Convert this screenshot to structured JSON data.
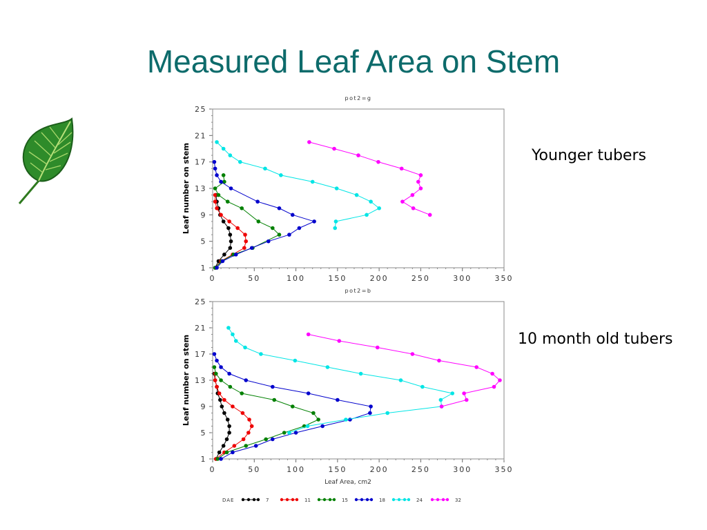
{
  "slide": {
    "title": "Measured Leaf Area on Stem",
    "note_top": "Younger tubers",
    "note_bottom": "10 month old tubers",
    "accent_color": "#0d6b6b"
  },
  "legend": {
    "label": "DAE",
    "series": [
      {
        "name": "7",
        "color": "#000000"
      },
      {
        "name": "11",
        "color": "#ee0000"
      },
      {
        "name": "15",
        "color": "#008000"
      },
      {
        "name": "18",
        "color": "#0000cc"
      },
      {
        "name": "24",
        "color": "#00e5e5"
      },
      {
        "name": "32",
        "color": "#ff00ff"
      }
    ]
  },
  "chart_data": [
    {
      "type": "line",
      "title": "pot2=g",
      "xlabel": "",
      "ylabel": "Leaf number on stem",
      "xlim": [
        0,
        350
      ],
      "ylim": [
        1,
        25
      ],
      "xticks": [
        "0",
        "50",
        "100",
        "150",
        "200",
        "250",
        "300",
        "350"
      ],
      "yticks": [
        "1",
        "5",
        "9",
        "13",
        "17",
        "21",
        "25"
      ],
      "series": [
        {
          "name": "7",
          "color": "#000000",
          "points": [
            [
              3,
              1
            ],
            [
              7,
              2
            ],
            [
              14,
              3
            ],
            [
              21,
              4
            ],
            [
              22,
              5
            ],
            [
              21,
              6
            ],
            [
              19,
              7
            ],
            [
              13,
              8
            ],
            [
              9,
              9
            ],
            [
              7,
              10
            ],
            [
              5,
              11
            ],
            [
              4,
              12
            ]
          ]
        },
        {
          "name": "11",
          "color": "#ee0000",
          "points": [
            [
              3,
              1
            ],
            [
              10,
              2
            ],
            [
              24,
              3
            ],
            [
              38,
              4
            ],
            [
              40,
              5
            ],
            [
              39,
              6
            ],
            [
              30,
              7
            ],
            [
              20,
              8
            ],
            [
              10,
              9
            ],
            [
              5,
              10
            ],
            [
              3,
              11
            ],
            [
              3,
              12
            ]
          ]
        },
        {
          "name": "15",
          "color": "#008000",
          "points": [
            [
              3,
              1
            ],
            [
              11,
              2
            ],
            [
              25,
              3
            ],
            [
              48,
              4
            ],
            [
              80,
              6
            ],
            [
              72,
              7
            ],
            [
              55,
              8
            ],
            [
              35,
              10
            ],
            [
              18,
              11
            ],
            [
              7,
              12
            ],
            [
              3,
              13
            ],
            [
              14,
              14
            ],
            [
              13,
              15
            ]
          ]
        },
        {
          "name": "18",
          "color": "#0000cc",
          "points": [
            [
              5,
              1
            ],
            [
              12,
              2
            ],
            [
              28,
              3
            ],
            [
              47,
              4
            ],
            [
              67,
              5
            ],
            [
              92,
              6
            ],
            [
              104,
              7
            ],
            [
              122,
              8
            ],
            [
              96,
              9
            ],
            [
              80,
              10
            ],
            [
              54,
              11
            ],
            [
              22,
              13
            ],
            [
              10,
              14
            ],
            [
              5,
              15
            ],
            [
              3,
              16
            ],
            [
              2,
              17
            ]
          ]
        },
        {
          "name": "24",
          "color": "#00e5e5",
          "points": [
            [
              147,
              7
            ],
            [
              148,
              8
            ],
            [
              185,
              9
            ],
            [
              200,
              10
            ],
            [
              190,
              11
            ],
            [
              173,
              12
            ],
            [
              149,
              13
            ],
            [
              120,
              14
            ],
            [
              82,
              15
            ],
            [
              63,
              16
            ],
            [
              33,
              17
            ],
            [
              21,
              18
            ],
            [
              13,
              19
            ],
            [
              5,
              20
            ]
          ]
        },
        {
          "name": "32",
          "color": "#ff00ff",
          "points": [
            [
              261,
              9
            ],
            [
              241,
              10
            ],
            [
              228,
              11
            ],
            [
              240,
              12
            ],
            [
              250,
              13
            ],
            [
              247,
              14
            ],
            [
              250,
              15
            ],
            [
              227,
              16
            ],
            [
              199,
              17
            ],
            [
              175,
              18
            ],
            [
              146,
              19
            ],
            [
              116,
              20
            ]
          ]
        }
      ]
    },
    {
      "type": "line",
      "title": "pot2=b",
      "xlabel": "Leaf Area, cm2",
      "ylabel": "Leaf number on stem",
      "xlim": [
        0,
        350
      ],
      "ylim": [
        1,
        25
      ],
      "xticks": [
        "0",
        "50",
        "100",
        "150",
        "200",
        "250",
        "300",
        "350"
      ],
      "yticks": [
        "1",
        "5",
        "9",
        "13",
        "17",
        "21",
        "25"
      ],
      "series": [
        {
          "name": "7",
          "color": "#000000",
          "points": [
            [
              4,
              1
            ],
            [
              8,
              2
            ],
            [
              13,
              3
            ],
            [
              17,
              4
            ],
            [
              20,
              5
            ],
            [
              20,
              6
            ],
            [
              18,
              7
            ],
            [
              14,
              8
            ],
            [
              11,
              9
            ],
            [
              9,
              10
            ],
            [
              6,
              11
            ],
            [
              5,
              12
            ],
            [
              3,
              13
            ],
            [
              2,
              14
            ]
          ]
        },
        {
          "name": "11",
          "color": "#ee0000",
          "points": [
            [
              4,
              1
            ],
            [
              14,
              2
            ],
            [
              26,
              3
            ],
            [
              37,
              4
            ],
            [
              43,
              5
            ],
            [
              47,
              6
            ],
            [
              44,
              7
            ],
            [
              36,
              8
            ],
            [
              24,
              9
            ],
            [
              14,
              10
            ],
            [
              8,
              11
            ],
            [
              5,
              12
            ],
            [
              3,
              13
            ],
            [
              3,
              14
            ]
          ]
        },
        {
          "name": "15",
          "color": "#008000",
          "points": [
            [
              6,
              1
            ],
            [
              17,
              2
            ],
            [
              40,
              3
            ],
            [
              64,
              4
            ],
            [
              86,
              5
            ],
            [
              110,
              6
            ],
            [
              127,
              7
            ],
            [
              121,
              8
            ],
            [
              96,
              9
            ],
            [
              74,
              10
            ],
            [
              35,
              11
            ],
            [
              21,
              12
            ],
            [
              10,
              13
            ],
            [
              4,
              14
            ],
            [
              2,
              15
            ]
          ]
        },
        {
          "name": "18",
          "color": "#0000cc",
          "points": [
            [
              10,
              1
            ],
            [
              24,
              2
            ],
            [
              52,
              3
            ],
            [
              72,
              4
            ],
            [
              100,
              5
            ],
            [
              132,
              6
            ],
            [
              165,
              7
            ],
            [
              189,
              8
            ],
            [
              190,
              9
            ],
            [
              150,
              10
            ],
            [
              115,
              11
            ],
            [
              72,
              12
            ],
            [
              40,
              13
            ],
            [
              20,
              14
            ],
            [
              10,
              15
            ],
            [
              5,
              16
            ],
            [
              2,
              17
            ]
          ]
        },
        {
          "name": "24",
          "color": "#00e5e5",
          "points": [
            [
              92,
              5
            ],
            [
              114,
              6
            ],
            [
              160,
              7
            ],
            [
              210,
              8
            ],
            [
              275,
              9
            ],
            [
              274,
              10
            ],
            [
              288,
              11
            ],
            [
              252,
              12
            ],
            [
              226,
              13
            ],
            [
              178,
              14
            ],
            [
              138,
              15
            ],
            [
              99,
              16
            ],
            [
              58,
              17
            ],
            [
              39,
              18
            ],
            [
              28,
              19
            ],
            [
              24,
              20
            ],
            [
              19,
              21
            ]
          ]
        },
        {
          "name": "32",
          "color": "#ff00ff",
          "points": [
            [
              275,
              9
            ],
            [
              305,
              10
            ],
            [
              302,
              11
            ],
            [
              338,
              12
            ],
            [
              345,
              13
            ],
            [
              336,
              14
            ],
            [
              317,
              15
            ],
            [
              272,
              16
            ],
            [
              240,
              17
            ],
            [
              198,
              18
            ],
            [
              152,
              19
            ],
            [
              115,
              20
            ]
          ]
        }
      ]
    }
  ]
}
